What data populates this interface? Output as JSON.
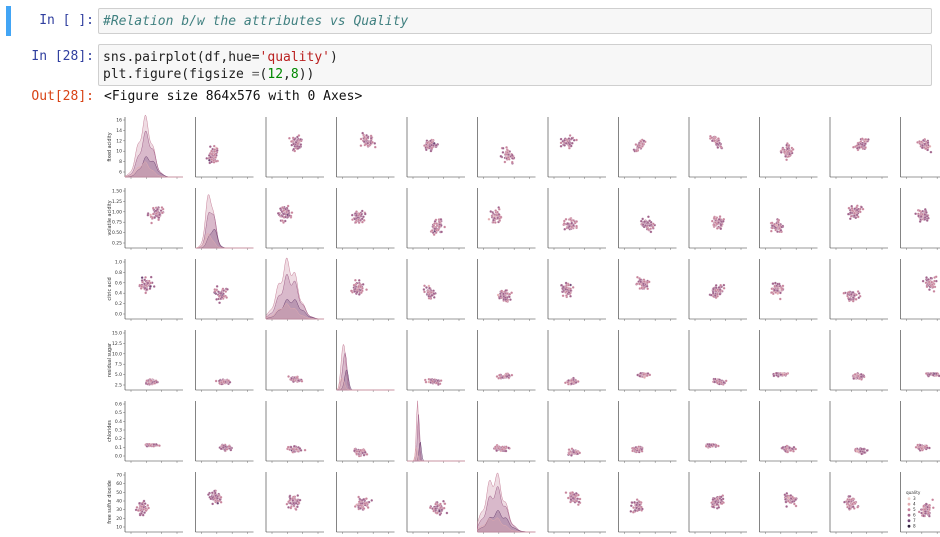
{
  "cells": [
    {
      "prompt": "In [ ]:",
      "code_line1": "#Relation b/w the attributes vs Quality"
    },
    {
      "prompt": "In [28]:",
      "code_line1": {
        "a": "sns.pairplot(df,hue=",
        "b": "'quality'",
        "c": ")"
      },
      "code_line2": {
        "a": "plt.figure(figsize ",
        "b": "=",
        "c": "(",
        "d": "12",
        "e": ",",
        "f": "8",
        "g": "))"
      }
    },
    {
      "prompt": "Out[28]:",
      "text": "<Figure size 864x576 with 0 Axes>"
    }
  ],
  "chart_data": {
    "type": "scatter",
    "variables": [
      "fixed acidity",
      "volatile acidity",
      "citric acid",
      "residual sugar",
      "chlorides",
      "free sulfur dioxide"
    ],
    "rows": [
      {
        "ylabel": "fixed acidity",
        "yticks": [
          "16",
          "14",
          "12",
          "10",
          "8",
          "6"
        ]
      },
      {
        "ylabel": "volatile acidity",
        "yticks": [
          "1.50",
          "1.25",
          "1.00",
          "0.75",
          "0.50",
          "0.25"
        ]
      },
      {
        "ylabel": "citric acid",
        "yticks": [
          "1.0",
          "0.8",
          "0.6",
          "0.4",
          "0.2",
          "0.0"
        ]
      },
      {
        "ylabel": "residual sugar",
        "yticks": [
          "15.0",
          "12.5",
          "10.0",
          "7.5",
          "5.0",
          "2.5"
        ]
      },
      {
        "ylabel": "chlorides",
        "yticks": [
          "0.6",
          "0.5",
          "0.4",
          "0.3",
          "0.2",
          "0.1",
          "0.0"
        ]
      },
      {
        "ylabel": "free sulfur dioxide",
        "yticks": [
          "70",
          "60",
          "50",
          "40",
          "30",
          "20",
          "10"
        ]
      }
    ],
    "hue": "quality",
    "legend": {
      "title": "quality",
      "position": "right",
      "levels": [
        "3",
        "4",
        "5",
        "6",
        "7",
        "8"
      ],
      "colors": [
        "#f0d2cf",
        "#e3acb0",
        "#c7839b",
        "#a0628b",
        "#6d4273",
        "#2c1d3b"
      ]
    },
    "grid": false
  }
}
